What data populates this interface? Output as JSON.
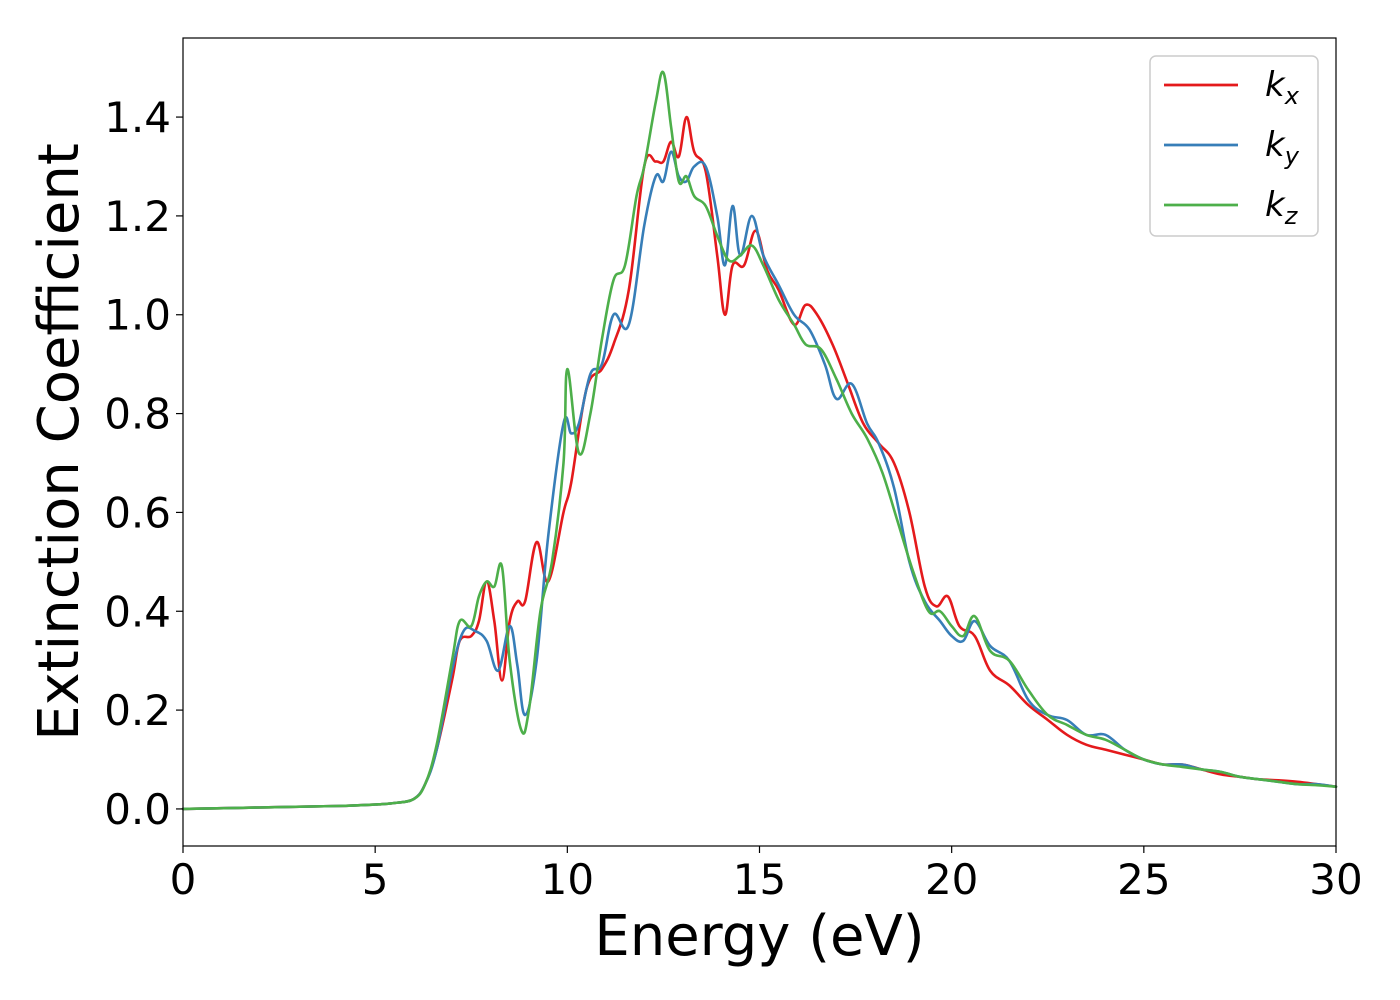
{
  "chart_data": {
    "type": "line",
    "title": "",
    "xlabel": "Energy (eV)",
    "ylabel": "Extinction Coefficient",
    "xlim": [
      0,
      30
    ],
    "ylim": [
      -0.075,
      1.56
    ],
    "xticks": [
      0,
      5,
      10,
      15,
      20,
      25,
      30
    ],
    "xtick_labels": [
      "0",
      "5",
      "10",
      "15",
      "20",
      "25",
      "30"
    ],
    "yticks": [
      0.0,
      0.2,
      0.4,
      0.6,
      0.8,
      1.0,
      1.2,
      1.4
    ],
    "ytick_labels": [
      "0.0",
      "0.2",
      "0.4",
      "0.6",
      "0.8",
      "1.0",
      "1.2",
      "1.4"
    ],
    "grid": false,
    "legend_position": "top-right",
    "series": [
      {
        "name": "k",
        "subscript": "x",
        "color": "#e41a1c",
        "x": [
          0,
          2,
          4,
          5,
          5.5,
          6,
          6.3,
          6.6,
          7.0,
          7.2,
          7.5,
          7.7,
          7.9,
          8.1,
          8.3,
          8.5,
          8.7,
          8.9,
          9.2,
          9.5,
          9.9,
          10.1,
          10.5,
          10.9,
          11.2,
          11.6,
          12.0,
          12.3,
          12.5,
          12.7,
          12.9,
          13.1,
          13.3,
          13.6,
          13.9,
          14.1,
          14.3,
          14.6,
          14.9,
          15.2,
          15.5,
          15.9,
          16.2,
          16.5,
          16.9,
          17.3,
          17.7,
          18.1,
          18.5,
          18.9,
          19.3,
          19.6,
          19.9,
          20.2,
          20.6,
          21.0,
          21.5,
          22.0,
          22.5,
          23.0,
          23.5,
          24.0,
          24.5,
          25.0,
          25.5,
          26.0,
          26.5,
          27.0,
          27.5,
          28.0,
          28.5,
          29.0,
          29.5,
          30.0
        ],
        "y": [
          0.0,
          0.003,
          0.006,
          0.009,
          0.012,
          0.02,
          0.05,
          0.12,
          0.26,
          0.34,
          0.35,
          0.38,
          0.46,
          0.38,
          0.26,
          0.38,
          0.42,
          0.42,
          0.54,
          0.46,
          0.6,
          0.66,
          0.85,
          0.89,
          0.94,
          1.05,
          1.3,
          1.31,
          1.31,
          1.35,
          1.32,
          1.4,
          1.33,
          1.29,
          1.12,
          1.0,
          1.1,
          1.1,
          1.17,
          1.09,
          1.05,
          0.98,
          1.02,
          1.0,
          0.94,
          0.86,
          0.78,
          0.74,
          0.7,
          0.6,
          0.45,
          0.41,
          0.43,
          0.37,
          0.35,
          0.28,
          0.25,
          0.21,
          0.18,
          0.15,
          0.13,
          0.12,
          0.11,
          0.1,
          0.09,
          0.09,
          0.08,
          0.07,
          0.065,
          0.06,
          0.058,
          0.055,
          0.05,
          0.045
        ]
      },
      {
        "name": "k",
        "subscript": "y",
        "color": "#377eb8",
        "x": [
          0,
          2,
          4,
          5,
          5.5,
          6,
          6.3,
          6.6,
          7.0,
          7.3,
          7.6,
          7.9,
          8.2,
          8.5,
          8.7,
          8.9,
          9.2,
          9.5,
          9.9,
          10.1,
          10.3,
          10.6,
          10.9,
          11.2,
          11.6,
          12.0,
          12.3,
          12.5,
          12.7,
          12.9,
          13.1,
          13.3,
          13.6,
          13.9,
          14.1,
          14.3,
          14.5,
          14.8,
          15.1,
          15.5,
          15.9,
          16.3,
          16.7,
          17.0,
          17.4,
          17.8,
          18.1,
          18.5,
          18.9,
          19.3,
          19.7,
          20.0,
          20.3,
          20.6,
          21.0,
          21.5,
          22.0,
          22.5,
          23.0,
          23.5,
          24.0,
          24.5,
          25.0,
          25.5,
          26.0,
          26.5,
          27.0,
          27.5,
          28.0,
          28.5,
          29.0,
          29.5,
          30.0
        ],
        "y": [
          0.0,
          0.003,
          0.006,
          0.009,
          0.012,
          0.02,
          0.05,
          0.12,
          0.28,
          0.36,
          0.36,
          0.34,
          0.28,
          0.37,
          0.29,
          0.19,
          0.3,
          0.55,
          0.78,
          0.76,
          0.78,
          0.88,
          0.9,
          1.0,
          0.98,
          1.18,
          1.28,
          1.27,
          1.33,
          1.28,
          1.27,
          1.3,
          1.3,
          1.2,
          1.1,
          1.22,
          1.12,
          1.2,
          1.12,
          1.06,
          1.0,
          0.97,
          0.9,
          0.83,
          0.86,
          0.78,
          0.74,
          0.65,
          0.5,
          0.42,
          0.38,
          0.35,
          0.34,
          0.38,
          0.33,
          0.3,
          0.22,
          0.19,
          0.18,
          0.15,
          0.15,
          0.12,
          0.1,
          0.09,
          0.09,
          0.08,
          0.075,
          0.065,
          0.06,
          0.055,
          0.05,
          0.05,
          0.045
        ]
      },
      {
        "name": "k",
        "subscript": "z",
        "color": "#4daf4a",
        "x": [
          0,
          2,
          4,
          5,
          5.5,
          6,
          6.3,
          6.6,
          7.0,
          7.2,
          7.5,
          7.7,
          7.9,
          8.1,
          8.3,
          8.5,
          8.8,
          9.0,
          9.3,
          9.6,
          9.9,
          10.0,
          10.3,
          10.6,
          10.9,
          11.2,
          11.5,
          11.8,
          12.0,
          12.3,
          12.5,
          12.7,
          12.9,
          13.1,
          13.3,
          13.6,
          13.9,
          14.2,
          14.5,
          14.8,
          15.1,
          15.5,
          15.9,
          16.2,
          16.6,
          17.0,
          17.4,
          17.8,
          18.2,
          18.6,
          19.0,
          19.4,
          19.7,
          20.0,
          20.3,
          20.6,
          21.0,
          21.5,
          22.0,
          22.5,
          23.0,
          23.5,
          24.0,
          24.5,
          25.0,
          25.5,
          26.0,
          26.5,
          27.0,
          27.5,
          28.0,
          28.5,
          29.0,
          29.5,
          30.0
        ],
        "y": [
          0.0,
          0.003,
          0.006,
          0.009,
          0.012,
          0.02,
          0.05,
          0.13,
          0.3,
          0.38,
          0.37,
          0.43,
          0.46,
          0.45,
          0.49,
          0.3,
          0.16,
          0.2,
          0.4,
          0.5,
          0.7,
          0.89,
          0.72,
          0.8,
          0.95,
          1.07,
          1.1,
          1.24,
          1.3,
          1.43,
          1.49,
          1.38,
          1.27,
          1.28,
          1.24,
          1.22,
          1.16,
          1.11,
          1.12,
          1.14,
          1.1,
          1.03,
          0.98,
          0.94,
          0.93,
          0.87,
          0.8,
          0.75,
          0.68,
          0.58,
          0.48,
          0.4,
          0.4,
          0.37,
          0.35,
          0.39,
          0.32,
          0.3,
          0.24,
          0.19,
          0.17,
          0.15,
          0.14,
          0.12,
          0.1,
          0.09,
          0.085,
          0.08,
          0.075,
          0.065,
          0.06,
          0.055,
          0.05,
          0.048,
          0.045
        ]
      }
    ]
  }
}
